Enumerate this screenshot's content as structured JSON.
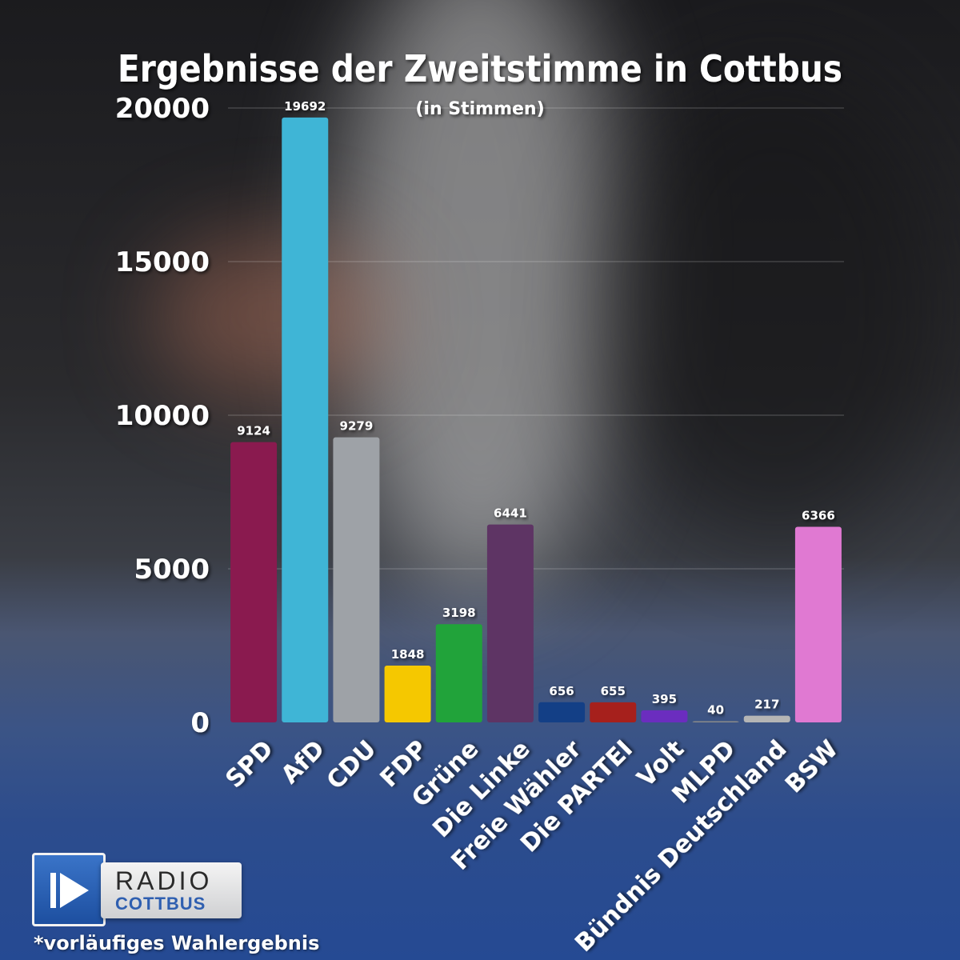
{
  "chart_data": {
    "type": "bar",
    "title": "Ergebnisse der Zweitstimme in Cottbus",
    "subtitle": "(in Stimmen)",
    "categories": [
      "SPD",
      "AfD",
      "CDU",
      "FDP",
      "Grüne",
      "Die Linke",
      "Freie Wähler",
      "Die PARTEI",
      "Volt",
      "MLPD",
      "Bündnis Deutschland",
      "BSW"
    ],
    "values": [
      9124,
      19692,
      9279,
      1848,
      3198,
      6441,
      656,
      655,
      395,
      40,
      217,
      6366
    ],
    "colors": [
      "#8a1a4f",
      "#3fb5d6",
      "#9ea2a7",
      "#f5c800",
      "#21a33a",
      "#5e3464",
      "#133f86",
      "#a6201c",
      "#6b2dbf",
      "#8a8a8a",
      "#b5b5b5",
      "#e079d2"
    ],
    "ylim": [
      0,
      20000
    ],
    "yticks": [
      0,
      5000,
      10000,
      15000,
      20000
    ],
    "grid": true,
    "legend": "none"
  },
  "branding": {
    "logo_word": "RADIO",
    "logo_city": "COTTBUS",
    "play_icon": "play-icon"
  },
  "footnote": "*vorläufiges Wahlergebnis"
}
